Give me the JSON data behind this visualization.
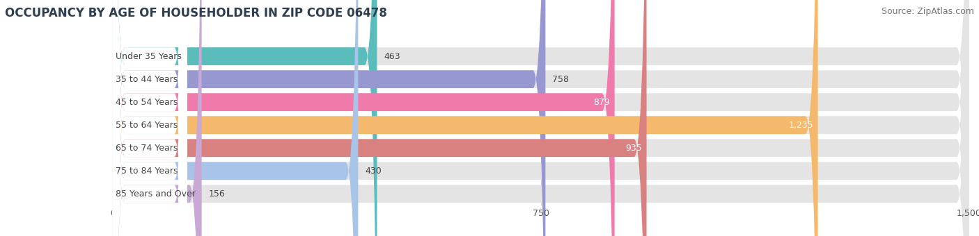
{
  "title": "OCCUPANCY BY AGE OF HOUSEHOLDER IN ZIP CODE 06478",
  "source": "Source: ZipAtlas.com",
  "categories": [
    "Under 35 Years",
    "35 to 44 Years",
    "45 to 54 Years",
    "55 to 64 Years",
    "65 to 74 Years",
    "75 to 84 Years",
    "85 Years and Over"
  ],
  "values": [
    463,
    758,
    879,
    1235,
    935,
    430,
    156
  ],
  "bar_colors": [
    "#5bbcbc",
    "#9898d0",
    "#f07aaa",
    "#f5b96e",
    "#d98080",
    "#a8c4e8",
    "#c8a8d4"
  ],
  "xlim": [
    0,
    1500
  ],
  "xticks": [
    0,
    750,
    1500
  ],
  "bar_background_color": "#e4e4e4",
  "title_fontsize": 12,
  "source_fontsize": 9,
  "label_fontsize": 9,
  "value_fontsize": 9,
  "figsize": [
    14.06,
    3.4
  ],
  "dpi": 100
}
